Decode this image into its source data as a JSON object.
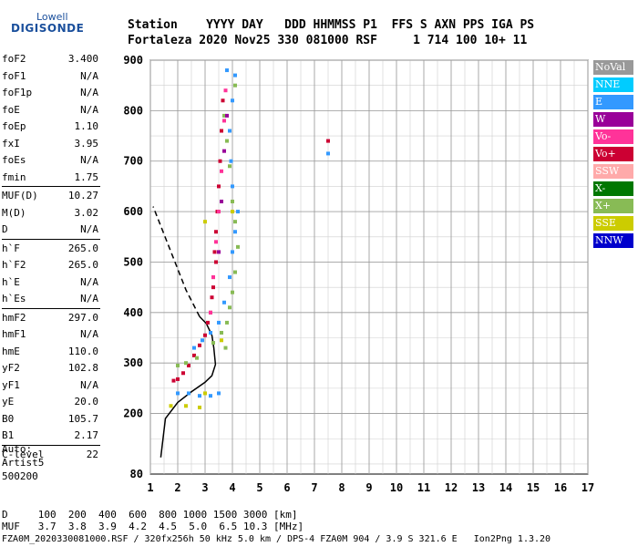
{
  "logo": {
    "brand": "Lowell",
    "product": "DIGISONDE"
  },
  "header": {
    "line1": "Station    YYYY DAY   DDD HHMMSS P1  FFS S AXN PPS IGA PS",
    "line2": "Fortaleza 2020 Nov25 330 081000 RSF     1 714 100 10+ 11"
  },
  "params": [
    {
      "k": "foF2",
      "v": "3.400"
    },
    {
      "k": "foF1",
      "v": "N/A"
    },
    {
      "k": "foF1p",
      "v": "N/A"
    },
    {
      "k": "foE",
      "v": "N/A"
    },
    {
      "k": "foEp",
      "v": "1.10"
    },
    {
      "k": "fxI",
      "v": "3.95"
    },
    {
      "k": "foEs",
      "v": "N/A"
    },
    {
      "k": "fmin",
      "v": "1.75"
    },
    {
      "k": "MUF(D)",
      "v": "10.27"
    },
    {
      "k": "M(D)",
      "v": "3.02"
    },
    {
      "k": "D",
      "v": "N/A"
    },
    {
      "k": "h`F",
      "v": "265.0"
    },
    {
      "k": "h`F2",
      "v": "265.0"
    },
    {
      "k": "h`E",
      "v": "N/A"
    },
    {
      "k": "h`Es",
      "v": "N/A"
    },
    {
      "k": "hmF2",
      "v": "297.0"
    },
    {
      "k": "hmF1",
      "v": "N/A"
    },
    {
      "k": "hmE",
      "v": "110.0"
    },
    {
      "k": "yF2",
      "v": "102.8"
    },
    {
      "k": "yF1",
      "v": "N/A"
    },
    {
      "k": "yE",
      "v": "20.0"
    },
    {
      "k": "B0",
      "v": "105.7"
    },
    {
      "k": "B1",
      "v": "2.17"
    },
    {
      "k": "C-level",
      "v": "22"
    }
  ],
  "auto": {
    "line1": "Auto:",
    "line2": "Artist5",
    "line3": "500200"
  },
  "legend": [
    {
      "label": "NoVal",
      "bg": "#999999",
      "fg": "#ffffff"
    },
    {
      "label": "NNE",
      "bg": "#00ccff",
      "fg": "#ffffff"
    },
    {
      "label": "E",
      "bg": "#3399ff",
      "fg": "#ffffff"
    },
    {
      "label": "W",
      "bg": "#990099",
      "fg": "#ffffff"
    },
    {
      "label": "Vo-",
      "bg": "#ff3399",
      "fg": "#ffffff"
    },
    {
      "label": "Vo+",
      "bg": "#cc0033",
      "fg": "#ffffff"
    },
    {
      "label": "SSW",
      "bg": "#ffaaaa",
      "fg": "#ffffff"
    },
    {
      "label": "X-",
      "bg": "#007700",
      "fg": "#ffffff"
    },
    {
      "label": "X+",
      "bg": "#88bb55",
      "fg": "#ffffff"
    },
    {
      "label": "SSE",
      "bg": "#cccc00",
      "fg": "#ffffff"
    },
    {
      "label": "NNW",
      "bg": "#0000cc",
      "fg": "#ffffff"
    }
  ],
  "footer": {
    "dline": "D     100  200  400  600  800 1000 1500 3000 [km]",
    "mline": "MUF   3.7  3.8  3.9  4.2  4.5  5.0  6.5 10.3 [MHz]",
    "info": "FZA0M_2020330081000.RSF / 320fx256h 50 kHz 5.0 km / DPS-4 FZA0M 904 / 3.9 S 321.6 E   Ion2Png 1.3.20"
  },
  "chart_data": {
    "type": "scatter",
    "xlim": [
      1,
      17
    ],
    "ylim": [
      80,
      900
    ],
    "x_ticks": [
      1,
      2,
      3,
      4,
      5,
      6,
      7,
      8,
      9,
      10,
      11,
      12,
      13,
      14,
      15,
      16,
      17
    ],
    "y_ticks": [
      80,
      200,
      300,
      400,
      500,
      600,
      700,
      800,
      900
    ],
    "grid": true,
    "profile_solid": [
      [
        1.38,
        113
      ],
      [
        1.55,
        190
      ],
      [
        2.0,
        222
      ],
      [
        2.5,
        243
      ],
      [
        3.0,
        262
      ],
      [
        3.25,
        275
      ],
      [
        3.38,
        297
      ],
      [
        3.32,
        330
      ],
      [
        3.25,
        355
      ],
      [
        3.05,
        378
      ],
      [
        2.8,
        392
      ]
    ],
    "profile_dashed": [
      [
        2.8,
        392
      ],
      [
        2.3,
        445
      ],
      [
        1.9,
        500
      ],
      [
        1.5,
        555
      ],
      [
        1.1,
        610
      ]
    ],
    "series": [
      {
        "color": "#cc0033",
        "points": [
          [
            1.85,
            265
          ],
          [
            2.0,
            268
          ],
          [
            2.2,
            280
          ],
          [
            2.4,
            295
          ],
          [
            2.6,
            315
          ],
          [
            2.8,
            335
          ],
          [
            3.0,
            355
          ],
          [
            3.1,
            380
          ],
          [
            3.2,
            400
          ],
          [
            3.25,
            430
          ],
          [
            3.3,
            470
          ],
          [
            3.35,
            520
          ],
          [
            3.4,
            560
          ],
          [
            3.45,
            600
          ],
          [
            3.5,
            650
          ],
          [
            3.55,
            700
          ],
          [
            3.6,
            760
          ],
          [
            3.65,
            820
          ],
          [
            3.3,
            450
          ],
          [
            3.4,
            500
          ],
          [
            7.5,
            740
          ]
        ]
      },
      {
        "color": "#3399ff",
        "points": [
          [
            2.6,
            330
          ],
          [
            2.9,
            345
          ],
          [
            3.2,
            360
          ],
          [
            3.5,
            380
          ],
          [
            3.7,
            420
          ],
          [
            3.9,
            470
          ],
          [
            4.0,
            520
          ],
          [
            4.1,
            560
          ],
          [
            4.2,
            600
          ],
          [
            4.0,
            650
          ],
          [
            3.95,
            700
          ],
          [
            3.9,
            760
          ],
          [
            4.0,
            820
          ],
          [
            4.1,
            870
          ],
          [
            3.8,
            880
          ],
          [
            7.5,
            715
          ],
          [
            2.0,
            240
          ],
          [
            2.4,
            240
          ],
          [
            2.8,
            235
          ],
          [
            3.2,
            235
          ],
          [
            3.5,
            240
          ]
        ]
      },
      {
        "color": "#88bb55",
        "points": [
          [
            2.0,
            295
          ],
          [
            2.3,
            300
          ],
          [
            2.7,
            310
          ],
          [
            3.3,
            340
          ],
          [
            3.6,
            360
          ],
          [
            3.8,
            380
          ],
          [
            3.9,
            410
          ],
          [
            4.0,
            440
          ],
          [
            4.1,
            480
          ],
          [
            4.2,
            530
          ],
          [
            4.1,
            580
          ],
          [
            4.0,
            620
          ],
          [
            3.9,
            690
          ],
          [
            3.8,
            740
          ],
          [
            3.7,
            790
          ],
          [
            4.1,
            850
          ],
          [
            3.75,
            330
          ]
        ]
      },
      {
        "color": "#ff3399",
        "points": [
          [
            3.2,
            400
          ],
          [
            3.3,
            470
          ],
          [
            3.4,
            540
          ],
          [
            3.5,
            600
          ],
          [
            3.6,
            680
          ],
          [
            3.7,
            780
          ],
          [
            3.75,
            840
          ]
        ]
      },
      {
        "color": "#cccc00",
        "points": [
          [
            1.75,
            215
          ],
          [
            2.3,
            215
          ],
          [
            2.8,
            212
          ],
          [
            3.0,
            240
          ],
          [
            3.6,
            345
          ],
          [
            4.0,
            600
          ],
          [
            3.0,
            580
          ]
        ]
      },
      {
        "color": "#990099",
        "points": [
          [
            3.5,
            520
          ],
          [
            3.6,
            620
          ],
          [
            3.7,
            720
          ],
          [
            3.8,
            790
          ]
        ]
      }
    ]
  }
}
